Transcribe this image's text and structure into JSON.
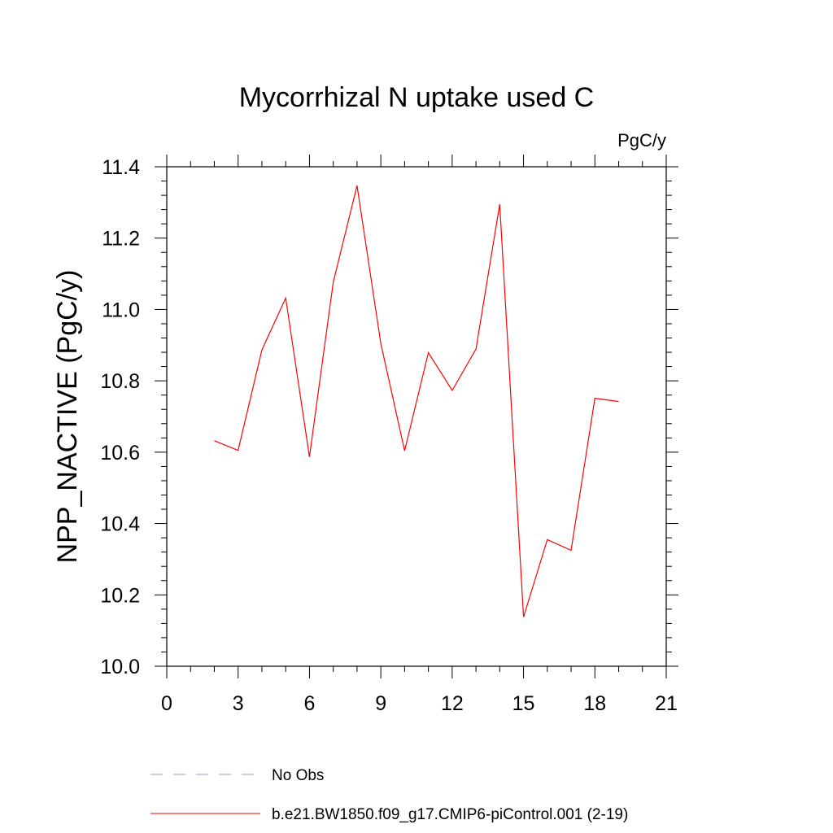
{
  "chart_data": {
    "type": "line",
    "title": "Mycorrhizal N uptake used C",
    "units_label": "PgC/y",
    "ylabel": "NPP_NACTIVE  (PgC/y)",
    "xlabel": "",
    "xlim": [
      0,
      21
    ],
    "ylim": [
      10.0,
      11.4
    ],
    "x_ticks": [
      0,
      3,
      6,
      9,
      12,
      15,
      18,
      21
    ],
    "x_tick_labels": [
      "0",
      "3",
      "6",
      "9",
      "12",
      "15",
      "18",
      "21"
    ],
    "y_ticks": [
      10.0,
      10.2,
      10.4,
      10.6,
      10.8,
      11.0,
      11.2,
      11.4
    ],
    "y_tick_labels": [
      "10.0",
      "10.2",
      "10.4",
      "10.6",
      "10.8",
      "11.0",
      "11.2",
      "11.4"
    ],
    "x_minor_step": 1,
    "y_minor_step": 0.04,
    "grid": false,
    "legend_position": "bottom",
    "series": [
      {
        "name": "b.e21.BW1850.f09_g17.CMIP6-piControl.001 (2-19)",
        "color": "#ff0000",
        "style": "solid",
        "x": [
          2,
          3,
          4,
          5,
          6,
          7,
          8,
          9,
          10,
          11,
          12,
          13,
          14,
          15,
          16,
          17,
          18,
          19
        ],
        "y": [
          10.632,
          10.605,
          10.887,
          11.032,
          10.587,
          11.077,
          11.347,
          10.905,
          10.604,
          10.879,
          10.773,
          10.889,
          11.295,
          10.138,
          10.355,
          10.325,
          10.751,
          10.742
        ]
      }
    ],
    "legend": [
      {
        "label": "No Obs",
        "color": "#9999dd",
        "style": "dashed"
      },
      {
        "label": "b.e21.BW1850.f09_g17.CMIP6-piControl.001 (2-19)",
        "color": "#ff0000",
        "style": "solid"
      }
    ]
  }
}
